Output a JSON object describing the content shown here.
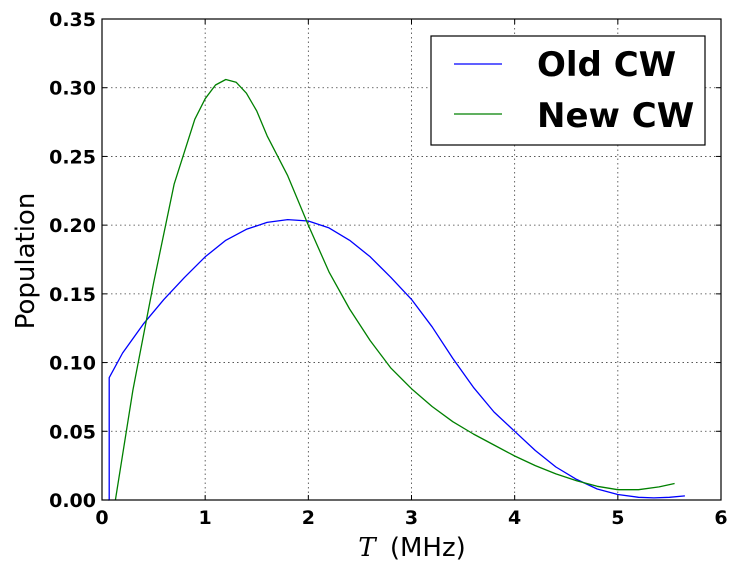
{
  "chart_data": {
    "type": "line",
    "xlabel": {
      "symbol": "T",
      "unit": "(MHz)"
    },
    "ylabel": "Population",
    "xlim": [
      0,
      6
    ],
    "ylim": [
      0,
      0.35
    ],
    "xticks": [
      "0",
      "1",
      "2",
      "3",
      "4",
      "5",
      "6"
    ],
    "yticks": [
      "0.00",
      "0.05",
      "0.10",
      "0.15",
      "0.20",
      "0.25",
      "0.30",
      "0.35"
    ],
    "grid": true,
    "legend_position": "top-right",
    "series": [
      {
        "name": "Old CW",
        "color": "#0000ff",
        "x": [
          0.06,
          0.07,
          0.07,
          0.2,
          0.4,
          0.6,
          0.8,
          1.0,
          1.2,
          1.4,
          1.6,
          1.8,
          2.0,
          2.2,
          2.4,
          2.6,
          2.8,
          3.0,
          3.2,
          3.4,
          3.6,
          3.8,
          4.0,
          4.2,
          4.4,
          4.6,
          4.8,
          5.0,
          5.2,
          5.35,
          5.5,
          5.65
        ],
        "y": [
          0.0,
          0.0,
          0.089,
          0.107,
          0.128,
          0.146,
          0.162,
          0.177,
          0.189,
          0.197,
          0.202,
          0.204,
          0.203,
          0.198,
          0.189,
          0.177,
          0.162,
          0.146,
          0.126,
          0.103,
          0.082,
          0.064,
          0.05,
          0.036,
          0.024,
          0.015,
          0.008,
          0.004,
          0.002,
          0.0015,
          0.002,
          0.003
        ]
      },
      {
        "name": "New CW",
        "color": "#008000",
        "x": [
          0.13,
          0.3,
          0.5,
          0.7,
          0.9,
          1.0,
          1.1,
          1.2,
          1.3,
          1.4,
          1.5,
          1.6,
          1.8,
          2.0,
          2.2,
          2.4,
          2.6,
          2.8,
          3.0,
          3.2,
          3.4,
          3.6,
          3.8,
          4.0,
          4.2,
          4.4,
          4.6,
          4.8,
          5.0,
          5.2,
          5.4,
          5.55
        ],
        "y": [
          0.0,
          0.08,
          0.158,
          0.23,
          0.277,
          0.292,
          0.302,
          0.306,
          0.304,
          0.296,
          0.283,
          0.265,
          0.236,
          0.2,
          0.166,
          0.139,
          0.116,
          0.096,
          0.081,
          0.068,
          0.057,
          0.048,
          0.04,
          0.032,
          0.025,
          0.019,
          0.014,
          0.01,
          0.0075,
          0.0075,
          0.0095,
          0.012
        ]
      }
    ]
  }
}
